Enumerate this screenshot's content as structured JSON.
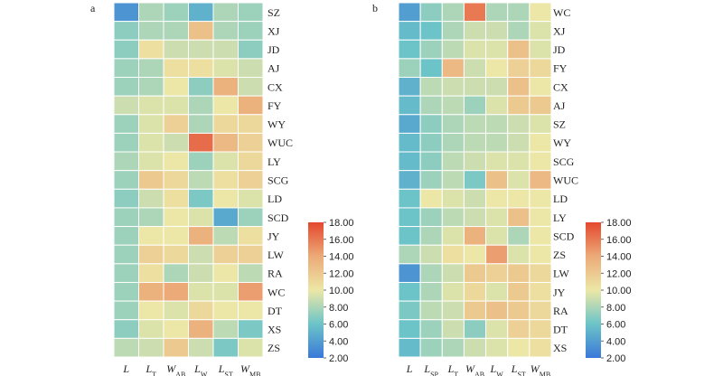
{
  "chart_data": [
    {
      "type": "heatmap",
      "panel_label": "a",
      "columns": [
        {
          "base": "L",
          "sub": ""
        },
        {
          "base": "L",
          "sub": "T"
        },
        {
          "base": "W",
          "sub": "AB"
        },
        {
          "base": "L",
          "sub": "W"
        },
        {
          "base": "L",
          "sub": "ST"
        },
        {
          "base": "W",
          "sub": "MB"
        }
      ],
      "rows": [
        "SZ",
        "XJ",
        "JD",
        "AJ",
        "CX",
        "FY",
        "WY",
        "WUC",
        "LY",
        "SCG",
        "LD",
        "SCD",
        "JY",
        "LW",
        "RA",
        "WC",
        "DT",
        "XS",
        "ZS"
      ],
      "values": [
        [
          3.5,
          8,
          7.5,
          5,
          8,
          7.5
        ],
        [
          7,
          8,
          8,
          12.5,
          8,
          7.5
        ],
        [
          7,
          10.5,
          9,
          9,
          9,
          7
        ],
        [
          7.5,
          8,
          10.5,
          10.5,
          9.5,
          9
        ],
        [
          7.5,
          8,
          10,
          7,
          13.5,
          9
        ],
        [
          9,
          9.5,
          9.5,
          8,
          10,
          13.5
        ],
        [
          7.5,
          9.5,
          11.5,
          8,
          11,
          11
        ],
        [
          7.5,
          9.5,
          9,
          16.5,
          13,
          11.5
        ],
        [
          8,
          9.5,
          10,
          7.5,
          9.5,
          11
        ],
        [
          7.5,
          12,
          11,
          8.5,
          10.5,
          11.5
        ],
        [
          7,
          9,
          10.5,
          6.5,
          10,
          9.5
        ],
        [
          7.5,
          8,
          10,
          9.5,
          4.5,
          7.5
        ],
        [
          7.5,
          10,
          10,
          13.5,
          8.5,
          10.5
        ],
        [
          7.5,
          11.5,
          11,
          9,
          11.5,
          11.5
        ],
        [
          7.5,
          10.5,
          8,
          9,
          10,
          8.5
        ],
        [
          7.5,
          13.5,
          14,
          9.5,
          9.5,
          14.5
        ],
        [
          7.5,
          10,
          9.5,
          11,
          10,
          10
        ],
        [
          7,
          9.5,
          10,
          13.5,
          8.5,
          6.5
        ],
        [
          8.5,
          9,
          12,
          9,
          6.5,
          9.5
        ]
      ],
      "colorbar": {
        "ticks": [
          "18.00",
          "16.00",
          "14.00",
          "12.00",
          "10.00",
          "8.00",
          "6.00",
          "4.00",
          "2.00"
        ],
        "min": 2,
        "max": 18
      }
    },
    {
      "type": "heatmap",
      "panel_label": "b",
      "columns": [
        {
          "base": "L",
          "sub": ""
        },
        {
          "base": "L",
          "sub": "SP"
        },
        {
          "base": "L",
          "sub": "T"
        },
        {
          "base": "W",
          "sub": "AB"
        },
        {
          "base": "L",
          "sub": "W"
        },
        {
          "base": "L",
          "sub": "ST"
        },
        {
          "base": "W",
          "sub": "MB"
        }
      ],
      "rows": [
        "WC",
        "XJ",
        "JD",
        "FY",
        "CX",
        "AJ",
        "SZ",
        "WY",
        "SCG",
        "WUC",
        "LD",
        "LY",
        "SCD",
        "ZS",
        "LW",
        "JY",
        "RA",
        "DT",
        "XS"
      ],
      "values": [
        [
          4,
          7,
          8,
          16,
          8,
          8,
          10
        ],
        [
          5.5,
          6,
          8,
          9,
          9,
          8,
          9.5
        ],
        [
          6,
          7.5,
          8.5,
          9.5,
          9.5,
          12.5,
          9.5
        ],
        [
          7.5,
          6,
          13,
          9,
          10,
          11.5,
          11
        ],
        [
          5,
          8.5,
          9,
          9,
          9,
          12.5,
          10
        ],
        [
          5.5,
          8,
          8.5,
          7.5,
          9.5,
          12,
          12
        ],
        [
          4.5,
          7,
          8,
          8.5,
          8.5,
          9,
          9.5
        ],
        [
          5.5,
          7,
          8,
          8.5,
          8.5,
          9,
          10
        ],
        [
          5.5,
          7,
          8.5,
          9,
          9.5,
          9.5,
          10
        ],
        [
          5,
          7.5,
          8.5,
          6.5,
          12.5,
          9.5,
          13
        ],
        [
          6,
          10,
          9.5,
          9,
          10,
          10,
          10
        ],
        [
          6,
          7.5,
          8.5,
          9,
          9.5,
          12.5,
          10
        ],
        [
          6,
          8,
          9.5,
          13.5,
          9.5,
          8,
          10
        ],
        [
          8,
          9,
          10.5,
          10,
          14.5,
          9.5,
          10
        ],
        [
          3.5,
          8,
          9,
          12,
          11.5,
          12,
          11
        ],
        [
          6,
          8,
          9.5,
          11,
          9.5,
          12,
          10.5
        ],
        [
          6.5,
          8.5,
          9,
          12,
          12.5,
          12,
          11
        ],
        [
          6,
          7.5,
          9,
          7,
          9.5,
          11.5,
          11
        ],
        [
          5.5,
          7.5,
          8,
          9,
          9.5,
          10,
          10.5
        ]
      ],
      "colorbar": {
        "ticks": [
          "18.00",
          "16.00",
          "14.00",
          "12.00",
          "10.00",
          "8.00",
          "6.00",
          "4.00",
          "2.00"
        ],
        "min": 2,
        "max": 18
      }
    }
  ]
}
